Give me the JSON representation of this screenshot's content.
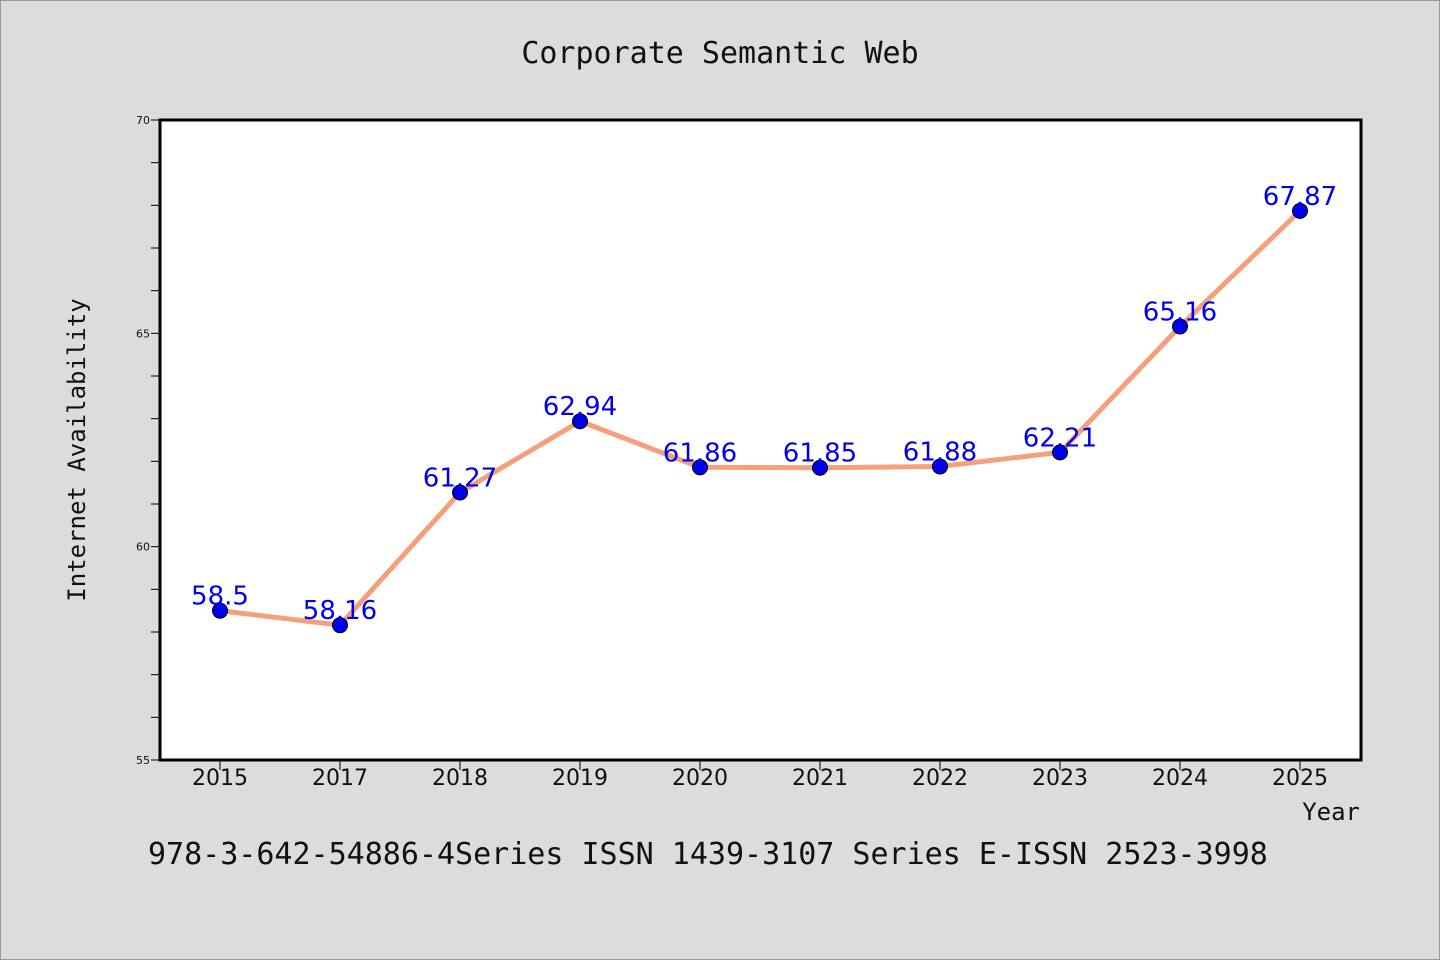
{
  "chart_data": {
    "type": "line",
    "title": "Corporate Semantic Web",
    "xlabel": "Year",
    "ylabel": "Internet Availability",
    "categories": [
      "2015",
      "2017",
      "2018",
      "2019",
      "2020",
      "2021",
      "2022",
      "2023",
      "2024",
      "2025"
    ],
    "series": [
      {
        "values": [
          58.5,
          58.16,
          61.27,
          62.94,
          61.86,
          61.85,
          61.88,
          62.21,
          65.16,
          67.87
        ],
        "labels": [
          "58.5",
          "58.16",
          "61.27",
          "62.94",
          "61.86",
          "61.85",
          "61.88",
          "62.21",
          "65.16",
          "67.87"
        ],
        "line_color": "#f4a07a",
        "marker_color": "#0000ee"
      }
    ],
    "ylim": [
      55,
      70
    ],
    "yticks": [
      "55",
      "60",
      "65",
      "70"
    ],
    "grid": false,
    "legend": "none"
  },
  "footer": "978-3-642-54886-4Series ISSN 1439-3107 Series E-ISSN 2523-3998",
  "colors": {
    "background": "#dcdcdc",
    "plot_background": "#ffffff"
  }
}
